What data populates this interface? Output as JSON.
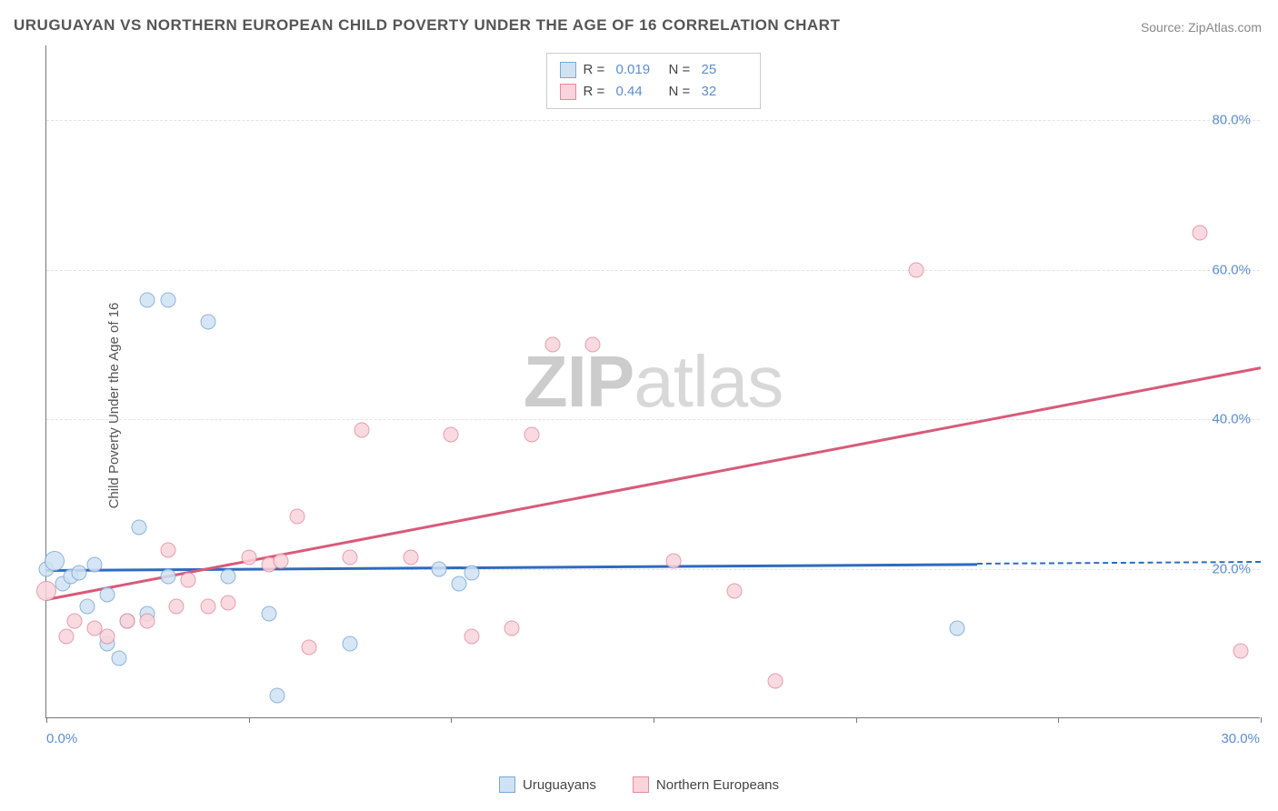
{
  "title": "URUGUAYAN VS NORTHERN EUROPEAN CHILD POVERTY UNDER THE AGE OF 16 CORRELATION CHART",
  "source_label": "Source: ",
  "source_site": "ZipAtlas.com",
  "watermark_bold": "ZIP",
  "watermark_light": "atlas",
  "ylabel": "Child Poverty Under the Age of 16",
  "chart": {
    "type": "scatter",
    "xlim": [
      0,
      30
    ],
    "ylim": [
      0,
      90
    ],
    "xticks": [
      0,
      5,
      10,
      15,
      20,
      25,
      30
    ],
    "xtick_labels": [
      "0.0%",
      "",
      "",
      "",
      "",
      "",
      "30.0%"
    ],
    "yticks": [
      20,
      40,
      60,
      80
    ],
    "ytick_labels": [
      "20.0%",
      "40.0%",
      "60.0%",
      "80.0%"
    ],
    "background": "#ffffff",
    "grid_color": "#e3e3e3",
    "axis_color": "#777777",
    "tick_label_color": "#5b8dd6",
    "marker_size": 17,
    "series": [
      {
        "name": "Uruguayans",
        "fill": "#cfe2f3",
        "stroke": "#7aa8d8",
        "r": 0.019,
        "n": 25,
        "trend": {
          "x1": 0,
          "y1": 20.0,
          "x2": 23,
          "y2": 20.8,
          "color": "#2e6bc0",
          "width": 2.5,
          "dash_extend_to": 30
        },
        "points": [
          [
            0.0,
            20.0
          ],
          [
            0.2,
            21.0,
            22
          ],
          [
            0.4,
            18.0
          ],
          [
            0.6,
            19.0
          ],
          [
            0.8,
            19.5
          ],
          [
            1.0,
            15.0
          ],
          [
            1.2,
            20.5
          ],
          [
            1.5,
            16.5
          ],
          [
            1.5,
            10.0
          ],
          [
            1.8,
            8.0
          ],
          [
            2.0,
            13.0
          ],
          [
            2.3,
            25.5
          ],
          [
            2.5,
            14.0
          ],
          [
            2.5,
            56.0
          ],
          [
            3.0,
            56.0
          ],
          [
            3.0,
            19.0
          ],
          [
            4.0,
            53.0
          ],
          [
            4.5,
            19.0
          ],
          [
            5.5,
            14.0
          ],
          [
            5.7,
            3.0
          ],
          [
            7.5,
            10.0
          ],
          [
            9.7,
            20.0
          ],
          [
            10.2,
            18.0
          ],
          [
            10.5,
            19.5
          ],
          [
            22.5,
            12.0
          ]
        ]
      },
      {
        "name": "Northern Europeans",
        "fill": "#fad4dc",
        "stroke": "#e38ca0",
        "r": 0.44,
        "n": 32,
        "trend": {
          "x1": 0,
          "y1": 16.0,
          "x2": 30,
          "y2": 47.0,
          "color": "#d85a7a",
          "width": 2.5
        },
        "points": [
          [
            0.0,
            17.0,
            22
          ],
          [
            0.5,
            11.0
          ],
          [
            0.7,
            13.0
          ],
          [
            1.2,
            12.0
          ],
          [
            1.5,
            11.0
          ],
          [
            2.0,
            13.0
          ],
          [
            2.5,
            13.0
          ],
          [
            3.0,
            22.5
          ],
          [
            3.2,
            15.0
          ],
          [
            3.5,
            18.5
          ],
          [
            4.0,
            15.0
          ],
          [
            4.5,
            15.5
          ],
          [
            5.0,
            21.5
          ],
          [
            5.5,
            20.5
          ],
          [
            5.8,
            21.0
          ],
          [
            6.2,
            27.0
          ],
          [
            6.5,
            9.5
          ],
          [
            7.5,
            21.5
          ],
          [
            7.8,
            38.5
          ],
          [
            9.0,
            21.5
          ],
          [
            10.0,
            38.0
          ],
          [
            10.5,
            11.0
          ],
          [
            11.5,
            12.0
          ],
          [
            12.0,
            38.0
          ],
          [
            12.5,
            50.0
          ],
          [
            13.5,
            50.0
          ],
          [
            15.5,
            21.0
          ],
          [
            17.0,
            17.0
          ],
          [
            18.0,
            5.0
          ],
          [
            21.5,
            60.0
          ],
          [
            28.5,
            65.0
          ],
          [
            29.5,
            9.0
          ]
        ]
      }
    ]
  },
  "legend_top_labels": {
    "R": "R  =",
    "N": "N  ="
  },
  "legend_bottom": [
    {
      "label": "Uruguayans",
      "fill": "#cfe2f3",
      "stroke": "#7aa8d8"
    },
    {
      "label": "Northern Europeans",
      "fill": "#fad4dc",
      "stroke": "#e38ca0"
    }
  ]
}
